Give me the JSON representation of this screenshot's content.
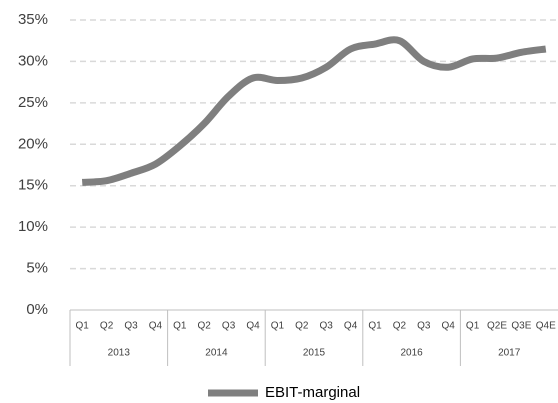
{
  "chart_data": {
    "type": "line",
    "groups": [
      {
        "label": "2013",
        "categories": [
          "Q1",
          "Q2",
          "Q3",
          "Q4"
        ]
      },
      {
        "label": "2014",
        "categories": [
          "Q1",
          "Q2",
          "Q3",
          "Q4"
        ]
      },
      {
        "label": "2015",
        "categories": [
          "Q1",
          "Q2",
          "Q3",
          "Q4"
        ]
      },
      {
        "label": "2016",
        "categories": [
          "Q1",
          "Q2",
          "Q3",
          "Q4"
        ]
      },
      {
        "label": "2017",
        "categories": [
          "Q1",
          "Q2E",
          "Q3E",
          "Q4E"
        ]
      }
    ],
    "series": [
      {
        "name": "EBIT-marginal",
        "color": "#7f7f7f",
        "values": [
          15.4,
          15.6,
          16.5,
          17.6,
          19.8,
          22.5,
          25.8,
          28.0,
          27.7,
          28.0,
          29.3,
          31.5,
          32.1,
          32.5,
          30.0,
          29.3,
          30.3,
          30.4,
          31.1,
          31.5
        ]
      }
    ],
    "ylim": [
      0,
      35
    ],
    "yticks": [
      {
        "value": 0,
        "label": "0%"
      },
      {
        "value": 5,
        "label": "5%"
      },
      {
        "value": 10,
        "label": "10%"
      },
      {
        "value": 15,
        "label": "15%"
      },
      {
        "value": 20,
        "label": "20%"
      },
      {
        "value": 25,
        "label": "25%"
      },
      {
        "value": 30,
        "label": "30%"
      },
      {
        "value": 35,
        "label": "35%"
      }
    ],
    "grid": true
  }
}
